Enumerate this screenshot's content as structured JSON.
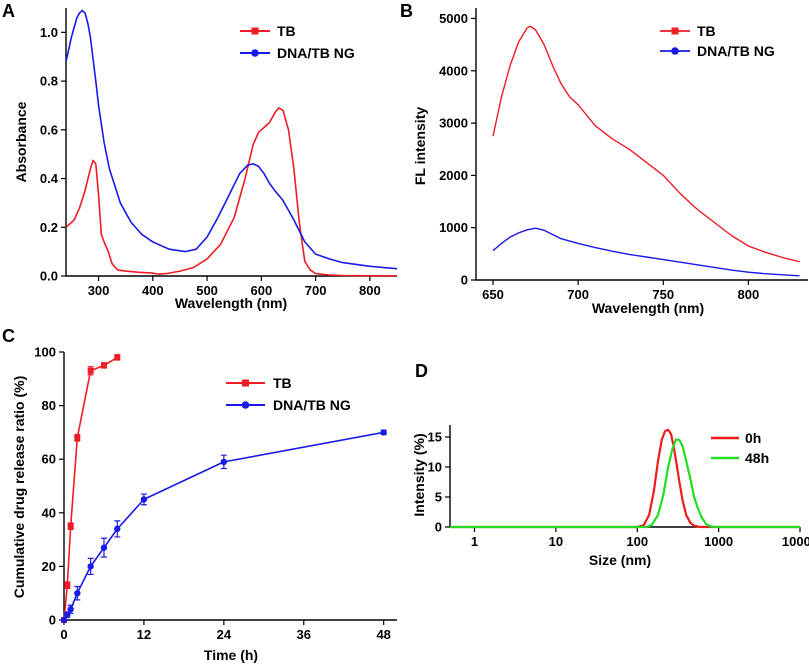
{
  "chart_data": [
    {
      "panel": "A",
      "type": "line",
      "xlabel": "Wavelength (nm)",
      "ylabel": "Absorbance",
      "xlim": [
        240,
        850
      ],
      "ylim": [
        0,
        1.1
      ],
      "xticks": [
        300,
        400,
        500,
        600,
        700,
        800
      ],
      "yticks": [
        0.0,
        0.2,
        0.4,
        0.6,
        0.8,
        1.0
      ],
      "ytick_labels": [
        "0.0",
        "0.2",
        "0.4",
        "0.6",
        "0.8",
        "1.0"
      ],
      "legend": "top-right",
      "series": [
        {
          "name": "TB",
          "color": "#ee1c24",
          "marker": "square",
          "x": [
            240,
            255,
            265,
            275,
            285,
            290,
            295,
            300,
            305,
            312,
            318,
            325,
            335,
            350,
            375,
            400,
            410,
            425,
            450,
            475,
            500,
            525,
            550,
            570,
            585,
            595,
            605,
            615,
            625,
            632,
            640,
            650,
            660,
            670,
            675,
            680,
            690,
            700,
            725,
            750,
            800,
            850
          ],
          "y": [
            0.2,
            0.23,
            0.28,
            0.35,
            0.44,
            0.475,
            0.46,
            0.33,
            0.17,
            0.13,
            0.1,
            0.05,
            0.025,
            0.02,
            0.015,
            0.012,
            0.008,
            0.01,
            0.02,
            0.035,
            0.07,
            0.13,
            0.24,
            0.4,
            0.54,
            0.59,
            0.61,
            0.63,
            0.67,
            0.69,
            0.68,
            0.6,
            0.44,
            0.22,
            0.14,
            0.06,
            0.025,
            0.01,
            0.004,
            0.002,
            0.001,
            0.001
          ]
        },
        {
          "name": "DNA/TB NG",
          "color": "#1a1ae6",
          "marker": "circle",
          "x": [
            240,
            245,
            250,
            255,
            260,
            265,
            270,
            275,
            280,
            285,
            290,
            295,
            300,
            310,
            320,
            340,
            360,
            380,
            400,
            430,
            460,
            480,
            500,
            520,
            540,
            560,
            575,
            585,
            595,
            605,
            615,
            625,
            640,
            660,
            680,
            700,
            725,
            750,
            800,
            850
          ],
          "y": [
            0.88,
            0.93,
            0.98,
            1.02,
            1.06,
            1.08,
            1.09,
            1.08,
            1.04,
            0.98,
            0.89,
            0.8,
            0.7,
            0.55,
            0.44,
            0.3,
            0.22,
            0.17,
            0.14,
            0.11,
            0.1,
            0.11,
            0.16,
            0.24,
            0.33,
            0.42,
            0.455,
            0.46,
            0.45,
            0.42,
            0.38,
            0.35,
            0.31,
            0.23,
            0.14,
            0.09,
            0.07,
            0.055,
            0.04,
            0.03
          ]
        }
      ]
    },
    {
      "panel": "B",
      "type": "line",
      "xlabel": "Wavelength (nm)",
      "ylabel": "FL intensity",
      "xlim": [
        640,
        835
      ],
      "ylim": [
        0,
        5200
      ],
      "xticks": [
        650,
        700,
        750,
        800
      ],
      "yticks": [
        0,
        1000,
        2000,
        3000,
        4000,
        5000
      ],
      "legend": "top-right",
      "series": [
        {
          "name": "TB",
          "color": "#ee1c24",
          "marker": "square",
          "x": [
            650,
            655,
            660,
            665,
            670,
            672,
            675,
            680,
            685,
            690,
            695,
            700,
            710,
            720,
            730,
            740,
            750,
            760,
            770,
            780,
            790,
            800,
            810,
            820,
            830
          ],
          "y": [
            2750,
            3500,
            4100,
            4550,
            4820,
            4850,
            4780,
            4500,
            4100,
            3750,
            3500,
            3350,
            2950,
            2700,
            2500,
            2250,
            2000,
            1650,
            1350,
            1100,
            850,
            650,
            530,
            430,
            350
          ]
        },
        {
          "name": "DNA/TB NG",
          "color": "#1a1ae6",
          "marker": "circle",
          "x": [
            650,
            655,
            660,
            665,
            670,
            675,
            680,
            685,
            690,
            700,
            710,
            720,
            730,
            740,
            750,
            760,
            770,
            780,
            790,
            800,
            810,
            820,
            830
          ],
          "y": [
            560,
            700,
            820,
            900,
            960,
            990,
            950,
            870,
            790,
            700,
            620,
            550,
            490,
            440,
            390,
            340,
            290,
            240,
            190,
            150,
            120,
            100,
            80
          ]
        }
      ]
    },
    {
      "panel": "C",
      "type": "line",
      "xlabel": "Time (h)",
      "ylabel": "Cumulative drug release ratio (%)",
      "xlim": [
        0,
        50
      ],
      "ylim": [
        0,
        100
      ],
      "xticks": [
        0,
        12,
        24,
        36,
        48
      ],
      "yticks": [
        0,
        20,
        40,
        60,
        80,
        100
      ],
      "legend": "top-right",
      "series": [
        {
          "name": "TB",
          "color": "#ee1c24",
          "marker": "square",
          "x": [
            0,
            0.5,
            1,
            2,
            4,
            6,
            8
          ],
          "y": [
            0,
            13,
            35,
            68,
            93,
            95,
            98
          ],
          "err": [
            0,
            1.2,
            1.2,
            1.2,
            1.5,
            1.0,
            1.0
          ]
        },
        {
          "name": "DNA/TB NG",
          "color": "#1a1ae6",
          "marker": "circle",
          "x": [
            0,
            0.5,
            1,
            2,
            4,
            6,
            8,
            12,
            24,
            48
          ],
          "y": [
            0,
            2,
            4,
            10,
            20,
            27,
            34,
            45,
            59,
            70
          ],
          "err": [
            0,
            1,
            1.5,
            2.5,
            3,
            3.5,
            3,
            2,
            2.5,
            0.8
          ]
        }
      ]
    },
    {
      "panel": "D",
      "type": "line",
      "xlabel": "Size (nm)",
      "ylabel": "Intensity (%)",
      "xscale": "log",
      "xlim": [
        0.5,
        10000
      ],
      "ylim": [
        0,
        17
      ],
      "xticks": [
        1,
        10,
        100,
        1000,
        10000
      ],
      "yticks": [
        0,
        5,
        10,
        15
      ],
      "legend": "top-right",
      "series": [
        {
          "name": "0h",
          "color": "#ee1c1c",
          "x": [
            0.5,
            100,
            120,
            140,
            160,
            180,
            200,
            220,
            240,
            260,
            280,
            300,
            330,
            360,
            400,
            450,
            500,
            600,
            700,
            10000
          ],
          "y": [
            0,
            0,
            0.3,
            2,
            6,
            11,
            14.5,
            16,
            16.2,
            15.5,
            13.5,
            11,
            7.5,
            4.5,
            2,
            0.7,
            0.2,
            0,
            0,
            0
          ]
        },
        {
          "name": "48h",
          "color": "#22dd22",
          "x": [
            0.5,
            130,
            150,
            180,
            210,
            240,
            270,
            300,
            330,
            360,
            400,
            450,
            500,
            560,
            620,
            700,
            800,
            900,
            10000
          ],
          "y": [
            0,
            0,
            0.3,
            2,
            5.5,
            10,
            13,
            14.6,
            14.5,
            13.5,
            11,
            8,
            5,
            3,
            1.6,
            0.5,
            0.1,
            0,
            0
          ]
        }
      ]
    }
  ]
}
